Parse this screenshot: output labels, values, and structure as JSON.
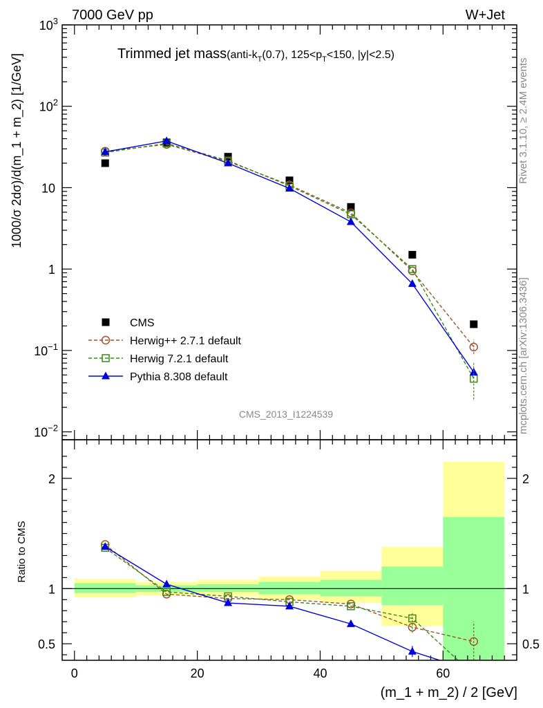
{
  "header": {
    "left": "7000 GeV pp",
    "right": "W+Jet"
  },
  "plot_title": {
    "main": "Trimmed jet mass",
    "sub_a": "(anti-k",
    "sub_a_sub": "T",
    "sub_b": "(0.7), 125<p",
    "sub_b_sub": "T",
    "sub_c": "<150, |y|<2.5)"
  },
  "side_labels": {
    "rivet": "Rivet 3.1.10, ≥ 2.4M events",
    "mcplots": "mcplots.cern.ch [arXiv:1306.3436]"
  },
  "watermark": "CMS_2013_I1224539",
  "axes": {
    "ylabel_top": "1000/σ 2dσ)/d(m_1 + m_2) [1/GeV]",
    "ylabel_ratio": "Ratio to CMS",
    "xlabel": "(m_1 + m_2) / 2 [GeV]",
    "x_ticks": [
      "0",
      "20",
      "40",
      "60"
    ],
    "ratio_ticks": [
      "0.5",
      "1",
      "2"
    ]
  },
  "colors": {
    "cms": "#000000",
    "herwigpp": "#a0522d",
    "herwig7": "#3a8a1a",
    "pythia": "#0000dd",
    "band_inner": "#99ff99",
    "band_outer": "#ffff99"
  },
  "chart_data": {
    "type": "line",
    "xlim": [
      -2,
      72
    ],
    "ylim": [
      0.008,
      1000
    ],
    "yscale": "log",
    "ratio_ylim": [
      0.35,
      2.35
    ],
    "x": [
      5,
      15,
      25,
      35,
      45,
      55,
      65
    ],
    "legend_position": "left-bottom",
    "series": [
      {
        "key": "cms",
        "name": "CMS",
        "marker": "square",
        "values": [
          20,
          36,
          24,
          12.3,
          5.8,
          1.5,
          0.21
        ]
      },
      {
        "key": "herwigpp",
        "name": "Herwig++ 2.7.1 default",
        "marker": "open-circle",
        "line": "dashed",
        "values": [
          28,
          34,
          21,
          10.8,
          4.9,
          0.95,
          0.11
        ],
        "ratio": [
          1.4,
          0.95,
          0.91,
          0.9,
          0.86,
          0.65,
          0.52
        ]
      },
      {
        "key": "herwig7",
        "name": "Herwig 7.2.1 default",
        "marker": "open-square",
        "line": "dashed",
        "values": [
          27,
          35,
          21.5,
          10.5,
          4.7,
          1.0,
          0.045
        ],
        "ratio": [
          1.37,
          0.97,
          0.93,
          0.88,
          0.84,
          0.73,
          0.22
        ]
      },
      {
        "key": "pythia",
        "name": "Pythia 8.308 default",
        "marker": "filled-triangle",
        "line": "solid",
        "values": [
          27.5,
          37.5,
          20,
          9.8,
          3.8,
          0.66,
          0.054
        ],
        "ratio": [
          1.38,
          1.04,
          0.87,
          0.84,
          0.68,
          0.43,
          0.25
        ]
      }
    ],
    "band_edges": [
      0,
      10,
      20,
      30,
      40,
      50,
      60,
      70
    ],
    "band_inner": [
      [
        0.96,
        1.05
      ],
      [
        0.97,
        1.03
      ],
      [
        0.97,
        1.04
      ],
      [
        0.95,
        1.06
      ],
      [
        0.93,
        1.08
      ],
      [
        0.85,
        1.2
      ],
      [
        0.35,
        1.65
      ]
    ],
    "band_outer": [
      [
        0.92,
        1.09
      ],
      [
        0.94,
        1.06
      ],
      [
        0.93,
        1.08
      ],
      [
        0.9,
        1.11
      ],
      [
        0.87,
        1.16
      ],
      [
        0.66,
        1.38
      ],
      [
        0.35,
        2.15
      ]
    ]
  }
}
